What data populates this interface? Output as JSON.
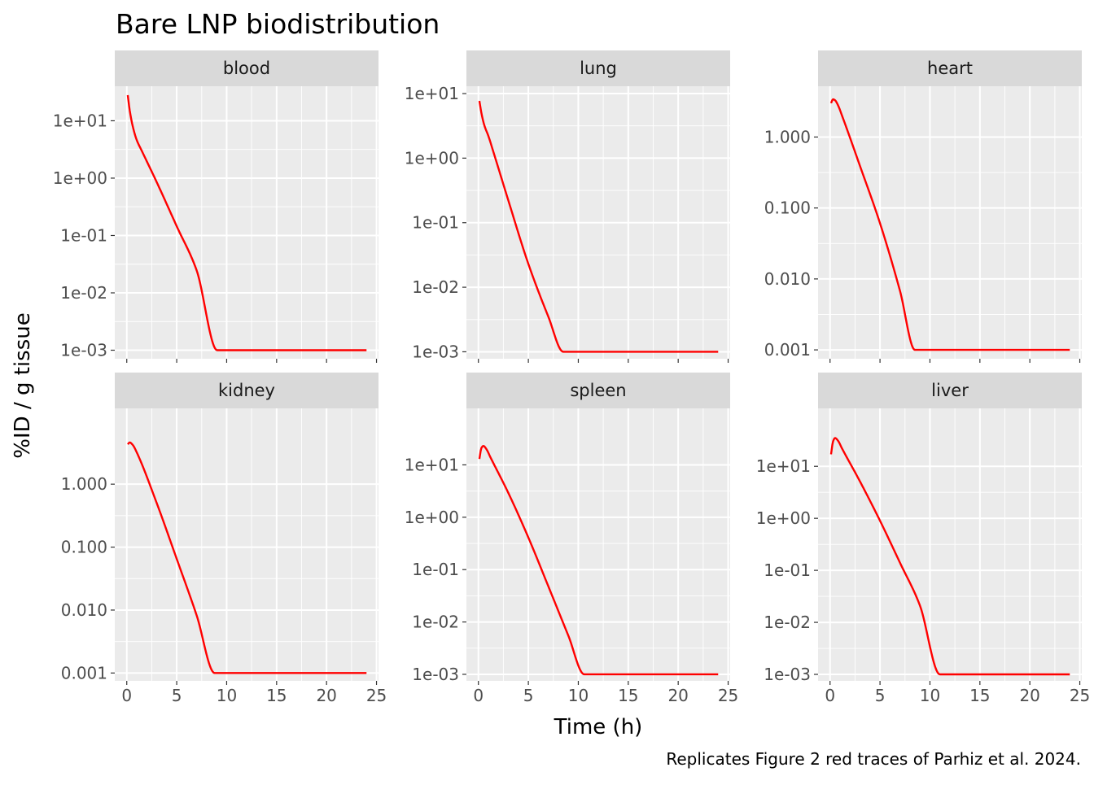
{
  "chart_data": {
    "type": "line",
    "title": "Bare LNP biodistribution",
    "xlabel": "Time (h)",
    "ylabel": "%ID / g tissue",
    "caption": "Replicates Figure 2 red traces of Parhiz et al. 2024.",
    "y_scale": "log10",
    "facet_layout": "2 rows x 3 columns",
    "grid": true,
    "legend": "none",
    "colors": {
      "line": "#ff0000",
      "panel_background": "#ebebeb",
      "strip_background": "#d9d9d9",
      "gridline": "#ffffff"
    },
    "xlim": [
      -1.2,
      25.2
    ],
    "x_ticks": [
      0,
      5,
      10,
      15,
      20,
      25
    ],
    "x_tick_labels": [
      "0",
      "5",
      "10",
      "15",
      "20",
      "25"
    ],
    "panels": [
      {
        "name": "blood",
        "ylim": [
          0.00071,
          40
        ],
        "y_ticks": [
          0.001,
          0.01,
          0.1,
          1,
          10
        ],
        "y_tick_labels": [
          "1e-03",
          "1e-02",
          "1e-01",
          "1e+00",
          "1e+01"
        ],
        "points": [
          [
            0.1,
            28
          ],
          [
            0.3,
            15
          ],
          [
            0.6,
            8
          ],
          [
            1.0,
            4.6
          ],
          [
            1.5,
            3
          ],
          [
            3,
            0.85
          ],
          [
            5,
            0.145
          ],
          [
            7,
            0.0245
          ],
          [
            9.05,
            0.001
          ],
          [
            24,
            0.001
          ]
        ]
      },
      {
        "name": "lung",
        "ylim": [
          0.00078,
          13
        ],
        "y_ticks": [
          0.001,
          0.01,
          0.1,
          1,
          10
        ],
        "y_tick_labels": [
          "1e-03",
          "1e-02",
          "1e-01",
          "1e+00",
          "1e+01"
        ],
        "points": [
          [
            0.1,
            7.7
          ],
          [
            0.3,
            5
          ],
          [
            0.6,
            3.2
          ],
          [
            1.0,
            2.2
          ],
          [
            1.5,
            1.25
          ],
          [
            3,
            0.22
          ],
          [
            5,
            0.023
          ],
          [
            7,
            0.0035
          ],
          [
            8.5,
            0.001
          ],
          [
            24,
            0.001
          ]
        ]
      },
      {
        "name": "heart",
        "ylim": [
          0.00075,
          5.2
        ],
        "y_ticks": [
          0.001,
          0.01,
          0.1,
          1
        ],
        "y_tick_labels": [
          "0.001",
          "0.010",
          "0.100",
          "1.000"
        ],
        "points": [
          [
            0.1,
            3.0
          ],
          [
            0.3,
            3.4
          ],
          [
            0.5,
            3.3
          ],
          [
            0.8,
            2.8
          ],
          [
            1.2,
            2.0
          ],
          [
            3,
            0.39
          ],
          [
            5,
            0.061
          ],
          [
            7,
            0.0068
          ],
          [
            8.5,
            0.001
          ],
          [
            24,
            0.001
          ]
        ]
      },
      {
        "name": "kidney",
        "ylim": [
          0.00075,
          16
        ],
        "y_ticks": [
          0.001,
          0.01,
          0.1,
          1
        ],
        "y_tick_labels": [
          "0.001",
          "0.010",
          "0.100",
          "1.000"
        ],
        "points": [
          [
            0.1,
            4.3
          ],
          [
            0.3,
            4.6
          ],
          [
            0.6,
            4.2
          ],
          [
            1.0,
            3.2
          ],
          [
            3,
            0.5
          ],
          [
            5,
            0.065
          ],
          [
            7,
            0.0082
          ],
          [
            8.8,
            0.001
          ],
          [
            24,
            0.001
          ]
        ]
      },
      {
        "name": "spleen",
        "ylim": [
          0.00075,
          120
        ],
        "y_ticks": [
          0.001,
          0.01,
          0.1,
          1,
          10
        ],
        "y_tick_labels": [
          "1e-03",
          "1e-02",
          "1e-01",
          "1e+00",
          "1e+01"
        ],
        "points": [
          [
            0.1,
            13
          ],
          [
            0.3,
            21
          ],
          [
            0.5,
            23
          ],
          [
            0.8,
            20
          ],
          [
            1.2,
            14
          ],
          [
            3,
            2.9
          ],
          [
            5,
            0.41
          ],
          [
            7,
            0.048
          ],
          [
            9,
            0.0055
          ],
          [
            10.6,
            0.001
          ],
          [
            24,
            0.001
          ]
        ]
      },
      {
        "name": "liver",
        "ylim": [
          0.00075,
          130
        ],
        "y_ticks": [
          0.001,
          0.01,
          0.1,
          1,
          10
        ],
        "y_tick_labels": [
          "1e-03",
          "1e-02",
          "1e-01",
          "1e+00",
          "1e+01"
        ],
        "points": [
          [
            0.1,
            17
          ],
          [
            0.3,
            30
          ],
          [
            0.5,
            35
          ],
          [
            0.8,
            31
          ],
          [
            1.2,
            22
          ],
          [
            3,
            5.1
          ],
          [
            5,
            0.9
          ],
          [
            7,
            0.14
          ],
          [
            9,
            0.021
          ],
          [
            11,
            0.001
          ],
          [
            24,
            0.001
          ]
        ]
      }
    ]
  }
}
